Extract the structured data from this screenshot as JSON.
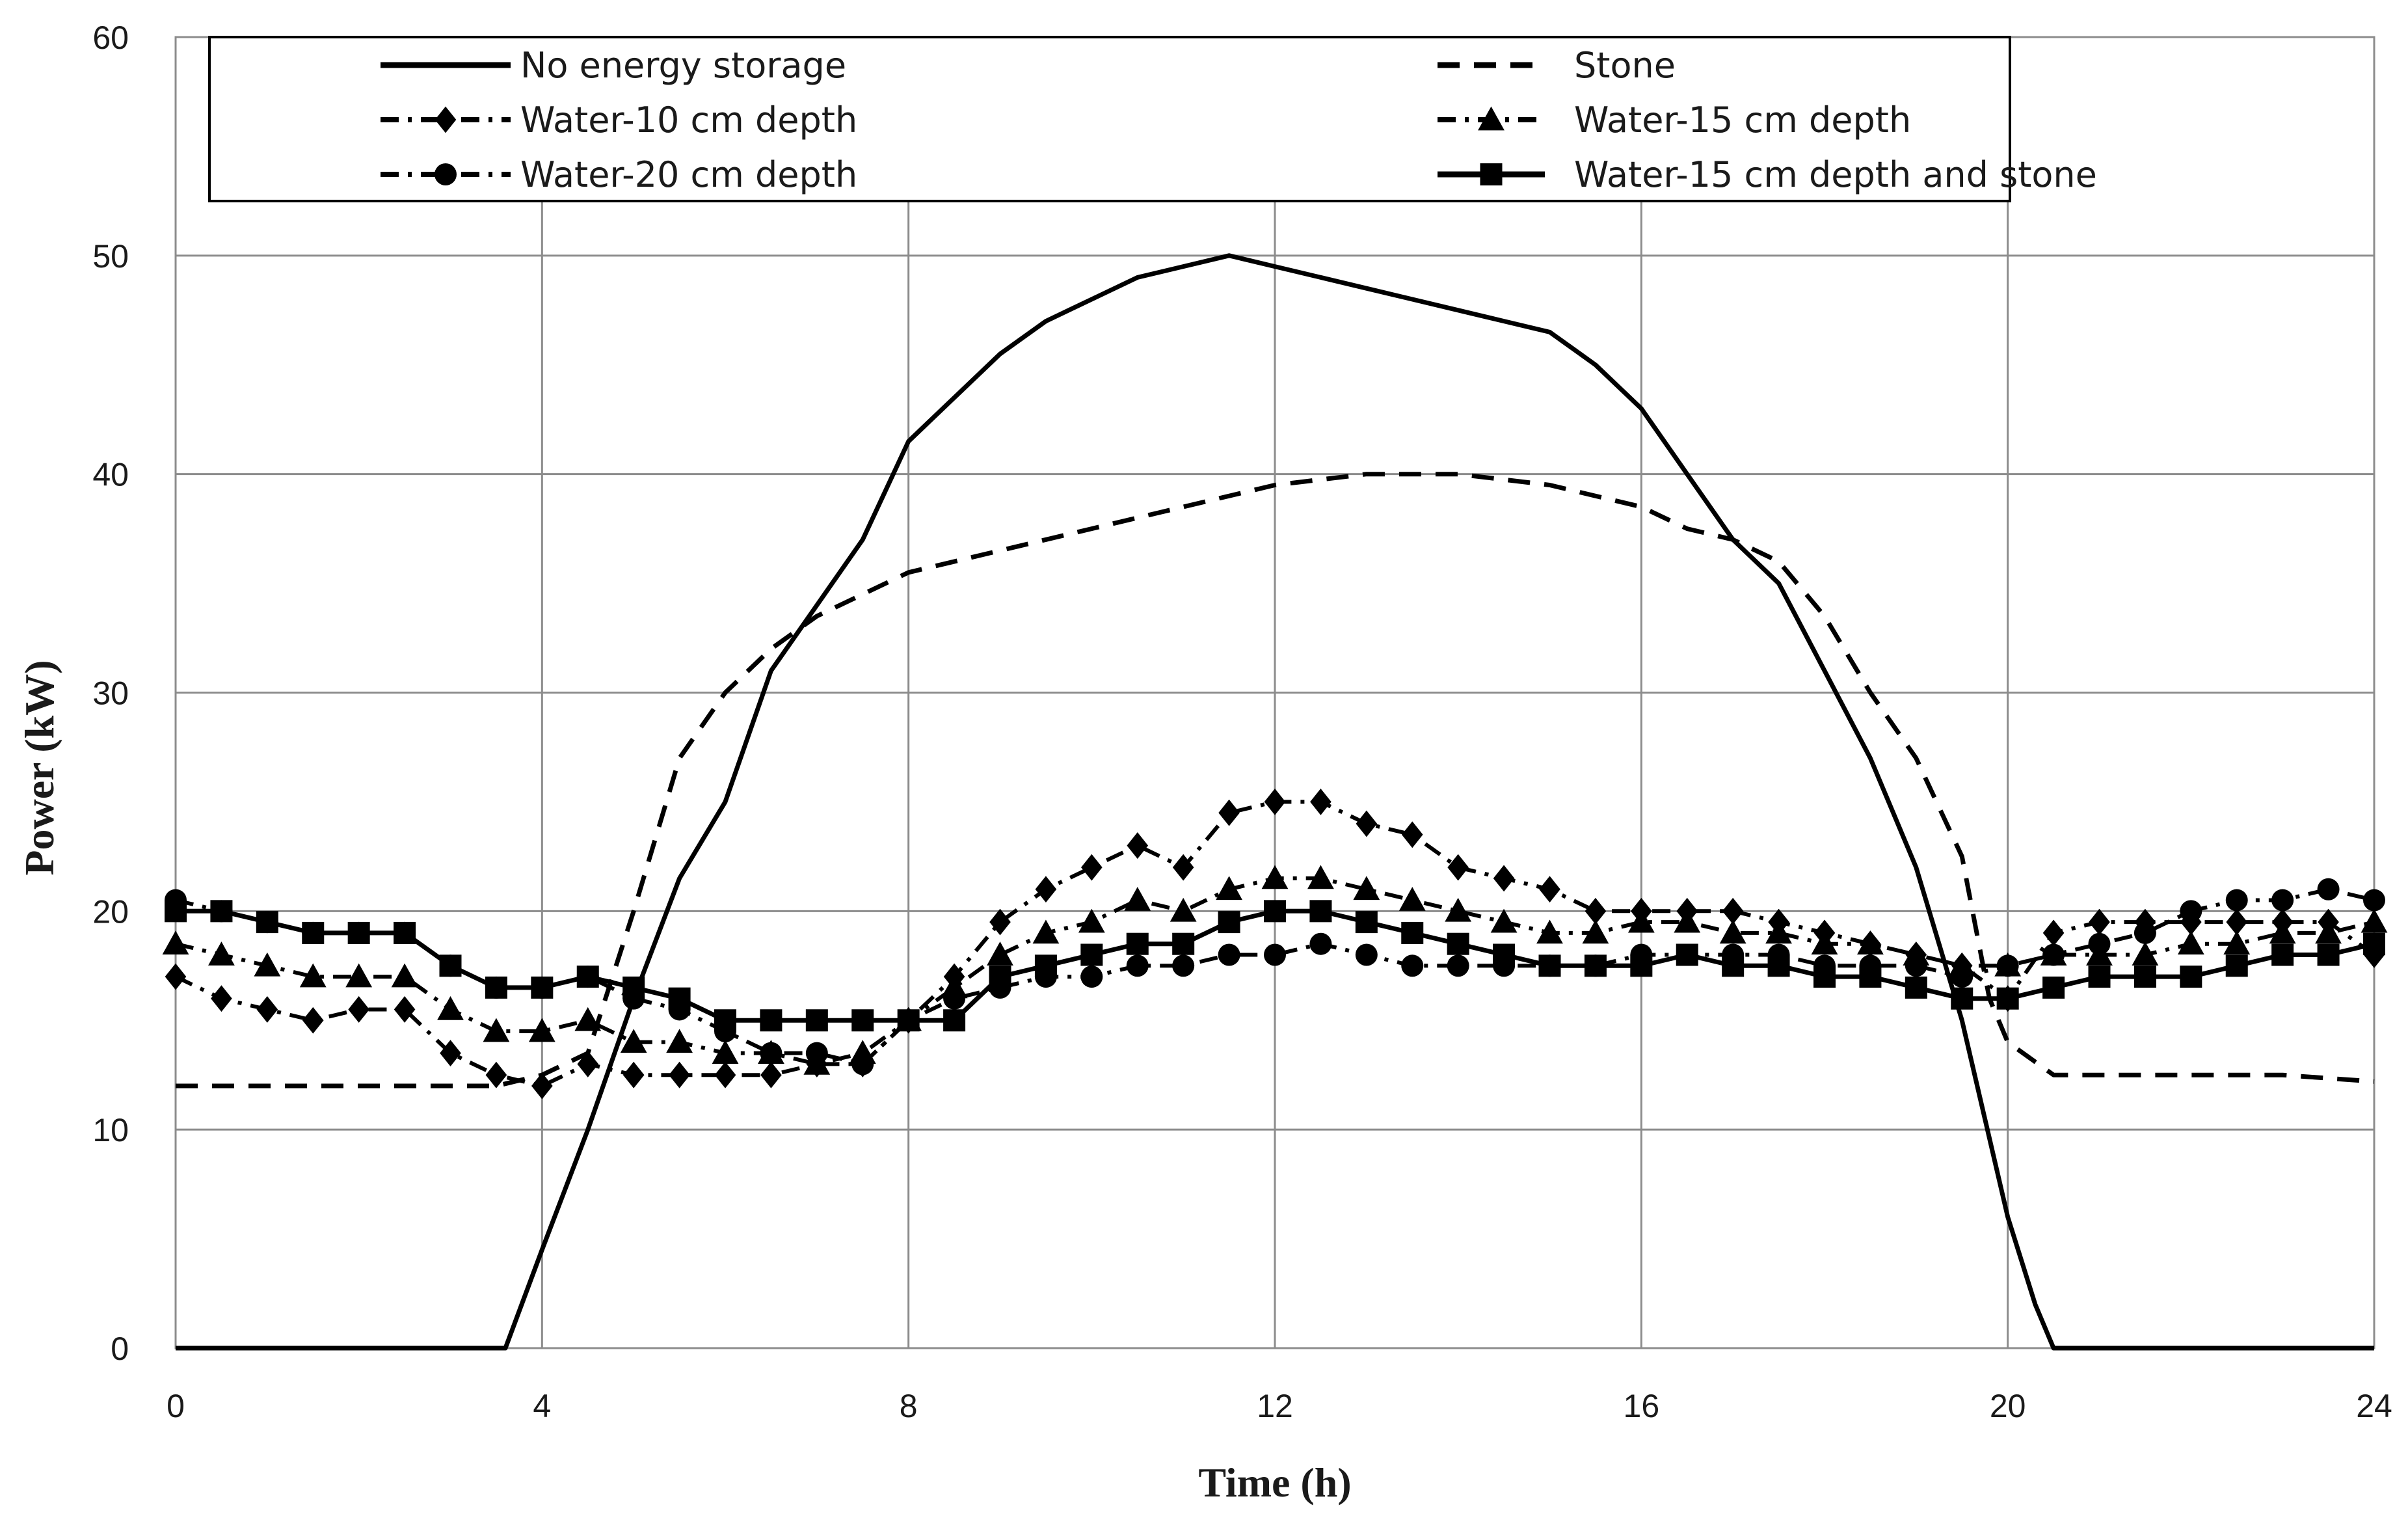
{
  "chart_data": {
    "type": "line",
    "title": "",
    "xlabel": "Time (h)",
    "ylabel": "Power (kW)",
    "xlim": [
      0,
      24
    ],
    "ylim": [
      0,
      60
    ],
    "xticks": [
      0,
      4,
      8,
      12,
      16,
      20,
      24
    ],
    "yticks": [
      0,
      10,
      20,
      30,
      40,
      50,
      60
    ],
    "grid": true,
    "legend_position": "top",
    "series": [
      {
        "name": "No energy storage",
        "style": "solid",
        "marker": "none",
        "x": [
          0,
          3.1,
          3.6,
          4.0,
          4.5,
          5.0,
          5.5,
          6.0,
          6.5,
          7.0,
          7.5,
          8.0,
          8.5,
          9.0,
          9.5,
          10.0,
          10.5,
          11.0,
          11.5,
          12.0,
          12.5,
          13.0,
          13.5,
          14.0,
          14.5,
          15.0,
          15.5,
          16.0,
          16.5,
          17.0,
          17.5,
          18.0,
          18.5,
          19.0,
          19.5,
          20.0,
          20.3,
          20.5,
          21.0,
          24
        ],
        "y": [
          0,
          0,
          0,
          4.5,
          10,
          16,
          21.5,
          25,
          31,
          34,
          37,
          41.5,
          43.5,
          45.5,
          47,
          48,
          49,
          49.5,
          50,
          49.5,
          49,
          48.5,
          48,
          47.5,
          47,
          46.5,
          45,
          43,
          40,
          37,
          35,
          31,
          27,
          22,
          15,
          6,
          2,
          0,
          0,
          0
        ]
      },
      {
        "name": "Stone",
        "style": "dashed",
        "marker": "none",
        "x": [
          0,
          3.0,
          3.5,
          4.0,
          4.5,
          5.0,
          5.5,
          6.0,
          6.5,
          7.0,
          7.5,
          8.0,
          9.0,
          10.0,
          11.0,
          12.0,
          13.0,
          14.0,
          15.0,
          16.0,
          16.5,
          17.0,
          17.5,
          18.0,
          18.5,
          19.0,
          19.5,
          19.8,
          20.0,
          20.5,
          21.0,
          22.0,
          23.0,
          24.0
        ],
        "y": [
          12,
          12,
          12,
          12.5,
          13.5,
          20,
          27,
          30,
          32,
          33.5,
          34.5,
          35.5,
          36.5,
          37.5,
          38.5,
          39.5,
          40,
          40,
          39.5,
          38.5,
          37.5,
          37,
          36,
          33.5,
          30,
          27,
          22.5,
          16,
          14,
          12.5,
          12.5,
          12.5,
          12.5,
          12.2
        ]
      },
      {
        "name": "Water-10 cm depth",
        "style": "dash-dot",
        "marker": "diamond",
        "x": [
          0,
          0.5,
          1,
          1.5,
          2,
          2.5,
          3,
          3.5,
          4,
          4.5,
          5,
          5.5,
          6,
          6.5,
          7,
          7.5,
          8,
          8.5,
          9,
          9.5,
          10,
          10.5,
          11,
          11.5,
          12,
          12.5,
          13,
          13.5,
          14,
          14.5,
          15,
          15.5,
          16,
          16.5,
          17,
          17.5,
          18,
          18.5,
          19,
          19.5,
          20,
          20.5,
          21,
          21.5,
          22,
          22.5,
          23,
          23.5,
          24
        ],
        "y": [
          17,
          16,
          15.5,
          15,
          15.5,
          15.5,
          13.5,
          12.5,
          12,
          13,
          12.5,
          12.5,
          12.5,
          12.5,
          13,
          13,
          15,
          17,
          19.5,
          21,
          22,
          23,
          22,
          24.5,
          25,
          25,
          24,
          23.5,
          22,
          21.5,
          21,
          20,
          20,
          20,
          20,
          19.5,
          19,
          18.5,
          18,
          17.5,
          16,
          19,
          19.5,
          19.5,
          19.5,
          19.5,
          19.5,
          19.5,
          18
        ]
      },
      {
        "name": "Water-15 cm depth",
        "style": "dash-dot",
        "marker": "triangle",
        "x": [
          0,
          0.5,
          1,
          1.5,
          2,
          2.5,
          3,
          3.5,
          4,
          4.5,
          5,
          5.5,
          6,
          6.5,
          7,
          7.5,
          8,
          8.5,
          9,
          9.5,
          10,
          10.5,
          11,
          11.5,
          12,
          12.5,
          13,
          13.5,
          14,
          14.5,
          15,
          15.5,
          16,
          16.5,
          17,
          17.5,
          18,
          18.5,
          19,
          19.5,
          20,
          20.5,
          21,
          21.5,
          22,
          22.5,
          23,
          23.5,
          24
        ],
        "y": [
          18.5,
          18,
          17.5,
          17,
          17,
          17,
          15.5,
          14.5,
          14.5,
          15,
          14,
          14,
          13.5,
          13.5,
          13,
          13.5,
          15,
          16.5,
          18,
          19,
          19.5,
          20.5,
          20,
          21,
          21.5,
          21.5,
          21,
          20.5,
          20,
          19.5,
          19,
          19,
          19.5,
          19.5,
          19,
          19,
          18.5,
          18.5,
          18,
          17.5,
          17.5,
          18,
          18,
          18,
          18.5,
          18.5,
          19,
          19,
          19.5
        ]
      },
      {
        "name": "Water-20 cm depth",
        "style": "dash-dot",
        "marker": "circle",
        "x": [
          0,
          0.5,
          1,
          1.5,
          2,
          2.5,
          3,
          3.5,
          4,
          4.5,
          5,
          5.5,
          6,
          6.5,
          7,
          7.5,
          8,
          8.5,
          9,
          9.5,
          10,
          10.5,
          11,
          11.5,
          12,
          12.5,
          13,
          13.5,
          14,
          14.5,
          15,
          15.5,
          16,
          16.5,
          17,
          17.5,
          18,
          18.5,
          19,
          19.5,
          20,
          20.5,
          21,
          21.5,
          22,
          22.5,
          23,
          23.5,
          24
        ],
        "y": [
          20.5,
          20,
          19.5,
          19,
          19,
          19,
          17.5,
          16.5,
          16.5,
          17,
          16,
          15.5,
          14.5,
          13.5,
          13.5,
          13,
          15,
          16,
          16.5,
          17,
          17,
          17.5,
          17.5,
          18,
          18,
          18.5,
          18,
          17.5,
          17.5,
          17.5,
          17.5,
          17.5,
          18,
          18,
          18,
          18,
          17.5,
          17.5,
          17.5,
          17,
          17.5,
          18,
          18.5,
          19,
          20,
          20.5,
          20.5,
          21,
          20.5
        ]
      },
      {
        "name": "Water-15 cm depth and stone",
        "style": "solid",
        "marker": "square",
        "x": [
          0,
          0.5,
          1,
          1.5,
          2,
          2.5,
          3,
          3.5,
          4,
          4.5,
          5,
          5.5,
          6,
          6.5,
          7,
          7.5,
          8,
          8.5,
          9,
          9.5,
          10,
          10.5,
          11,
          11.5,
          12,
          12.5,
          13,
          13.5,
          14,
          14.5,
          15,
          15.5,
          16,
          16.5,
          17,
          17.5,
          18,
          18.5,
          19,
          19.5,
          20,
          20.5,
          21,
          21.5,
          22,
          22.5,
          23,
          23.5,
          24
        ],
        "y": [
          20,
          20,
          19.5,
          19,
          19,
          19,
          17.5,
          16.5,
          16.5,
          17,
          16.5,
          16,
          15,
          15,
          15,
          15,
          15,
          15,
          17,
          17.5,
          18,
          18.5,
          18.5,
          19.5,
          20,
          20,
          19.5,
          19,
          18.5,
          18,
          17.5,
          17.5,
          17.5,
          18,
          17.5,
          17.5,
          17,
          17,
          16.5,
          16,
          16,
          16.5,
          17,
          17,
          17,
          17.5,
          18,
          18,
          18.5
        ]
      }
    ]
  }
}
